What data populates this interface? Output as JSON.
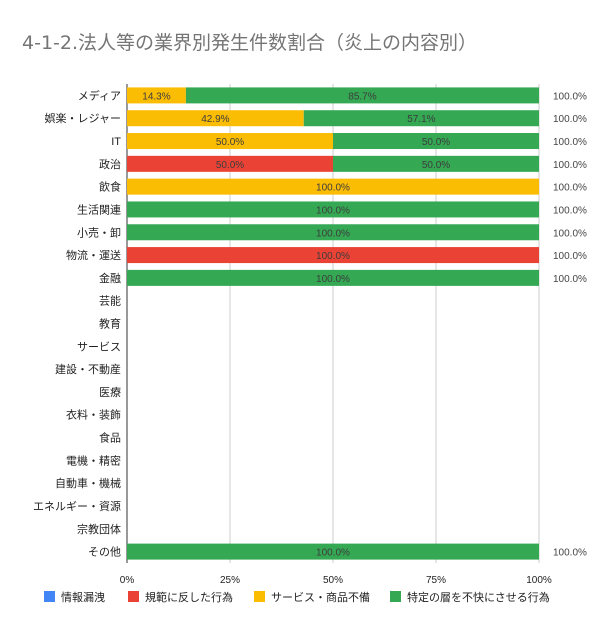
{
  "title": "4-1-2.法人等の業界別発生件数割合（炎上の内容別）",
  "chart_data": {
    "type": "bar",
    "orientation": "horizontal",
    "stacked": "percent",
    "categories": [
      "メディア",
      "娯楽・レジャー",
      "IT",
      "政治",
      "飲食",
      "生活関連",
      "小売・卸",
      "物流・運送",
      "金融",
      "芸能",
      "教育",
      "サービス",
      "建設・不動産",
      "医療",
      "衣料・装飾",
      "食品",
      "電機・精密",
      "自動車・機械",
      "エネルギー・資源",
      "宗教団体",
      "その他"
    ],
    "series": [
      {
        "name": "情報漏洩",
        "color": "#4285f4",
        "values": [
          0,
          0,
          0,
          0,
          0,
          0,
          0,
          0,
          0,
          0,
          0,
          0,
          0,
          0,
          0,
          0,
          0,
          0,
          0,
          0,
          0
        ],
        "labels": [
          null,
          null,
          null,
          null,
          null,
          null,
          null,
          null,
          null,
          null,
          null,
          null,
          null,
          null,
          null,
          null,
          null,
          null,
          null,
          null,
          null
        ]
      },
      {
        "name": "規範に反した行為",
        "color": "#ea4335",
        "values": [
          0,
          0,
          0,
          50,
          0,
          0,
          0,
          100,
          0,
          0,
          0,
          0,
          0,
          0,
          0,
          0,
          0,
          0,
          0,
          0,
          0
        ],
        "labels": [
          null,
          null,
          null,
          "50.0%",
          null,
          null,
          null,
          "100.0%",
          null,
          null,
          null,
          null,
          null,
          null,
          null,
          null,
          null,
          null,
          null,
          null,
          null
        ]
      },
      {
        "name": "サービス・商品不備",
        "color": "#fbbc04",
        "values": [
          14.3,
          42.9,
          50,
          0,
          100,
          0,
          0,
          0,
          0,
          0,
          0,
          0,
          0,
          0,
          0,
          0,
          0,
          0,
          0,
          0,
          0
        ],
        "labels": [
          "14.3%",
          "42.9%",
          "50.0%",
          null,
          "100.0%",
          null,
          null,
          null,
          null,
          null,
          null,
          null,
          null,
          null,
          null,
          null,
          null,
          null,
          null,
          null,
          null
        ]
      },
      {
        "name": "特定の層を不快にさせる行為",
        "color": "#34a853",
        "values": [
          85.7,
          57.1,
          50,
          50,
          0,
          100,
          100,
          0,
          100,
          0,
          0,
          0,
          0,
          0,
          0,
          0,
          0,
          0,
          0,
          0,
          100
        ],
        "labels": [
          "85.7%",
          "57.1%",
          "50.0%",
          "50.0%",
          null,
          "100.0%",
          "100.0%",
          null,
          "100.0%",
          null,
          null,
          null,
          null,
          null,
          null,
          null,
          null,
          null,
          null,
          null,
          "100.0%"
        ]
      }
    ],
    "totals": [
      "100.0%",
      "100.0%",
      "100.0%",
      "100.0%",
      "100.0%",
      "100.0%",
      "100.0%",
      "100.0%",
      "100.0%",
      null,
      null,
      null,
      null,
      null,
      null,
      null,
      null,
      null,
      null,
      null,
      "100.0%"
    ],
    "x_ticks": [
      "0%",
      "25%",
      "50%",
      "75%",
      "100%"
    ],
    "xlim": [
      0,
      100
    ],
    "grid": true,
    "legend_position": "bottom"
  }
}
